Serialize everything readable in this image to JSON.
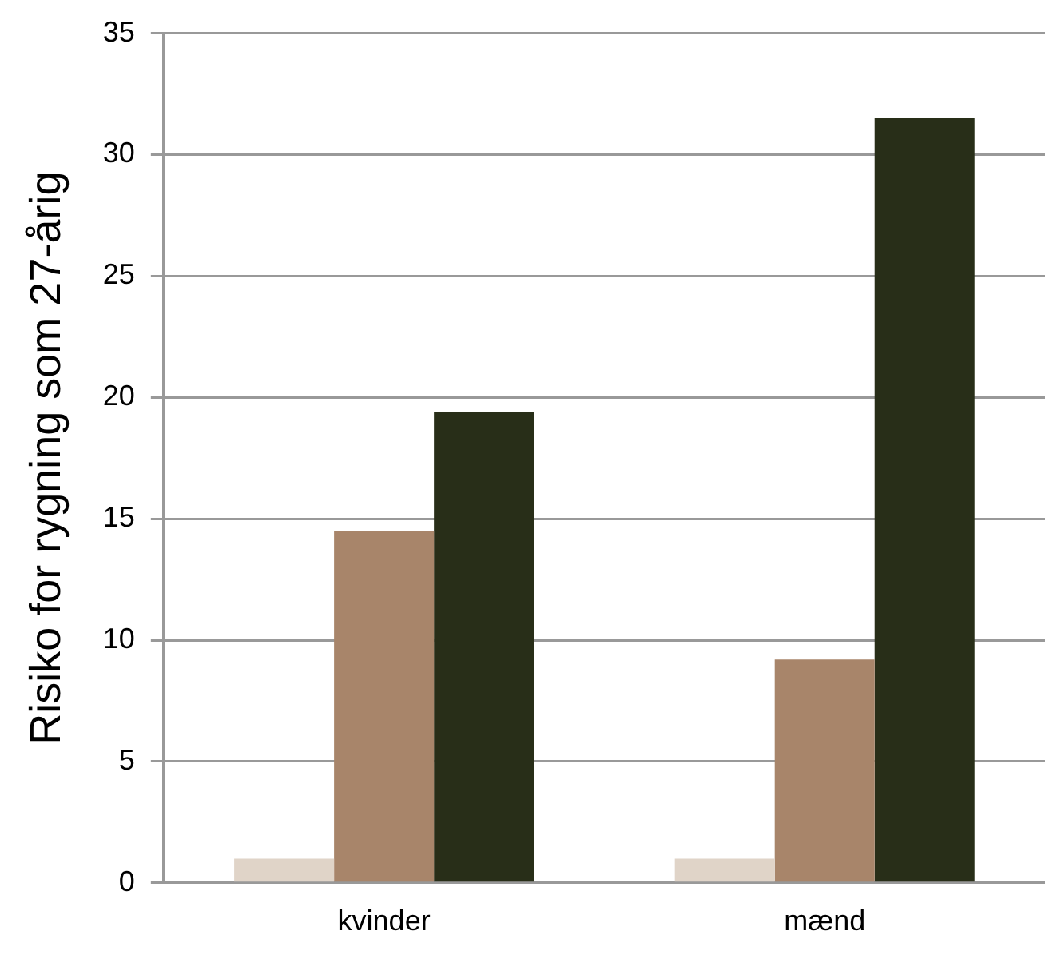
{
  "chart_data": {
    "type": "bar",
    "ylabel": "Risiko for rygning som 27-årig",
    "categories": [
      "kvinder",
      "mænd"
    ],
    "series": [
      {
        "color": "#e0d4c8",
        "values": [
          1,
          1
        ]
      },
      {
        "color": "#a8856a",
        "values": [
          14.5,
          9.2
        ]
      },
      {
        "color": "#282e18",
        "values": [
          19.4,
          31.5
        ]
      }
    ],
    "ylim": [
      0,
      35
    ],
    "yticks": [
      0,
      5,
      10,
      15,
      20,
      25,
      30,
      35
    ],
    "grid": "y",
    "legend": false
  }
}
